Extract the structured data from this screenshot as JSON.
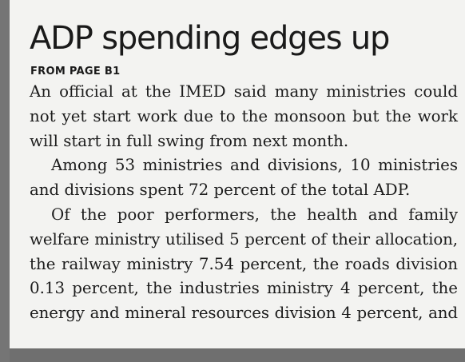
{
  "article": {
    "headline": "ADP spending edges up",
    "kicker": "FROM PAGE B1",
    "lines": [
      "An official at the IMED said many ministries could",
      "not yet start work due to the monsoon but the work",
      "will start in full swing from next month.",
      "Among 53 ministries and divisions, 10 ministries",
      "and divisions spent 72 percent of the total ADP.",
      "Of the poor performers, the health and family",
      "welfare ministry utilised 5 percent of their allocation,",
      "the railway ministry 7.54 percent, the roads division",
      "0.13 percent, the industries ministry 4 percent, the",
      "energy and mineral resources division 4 percent, and"
    ]
  }
}
